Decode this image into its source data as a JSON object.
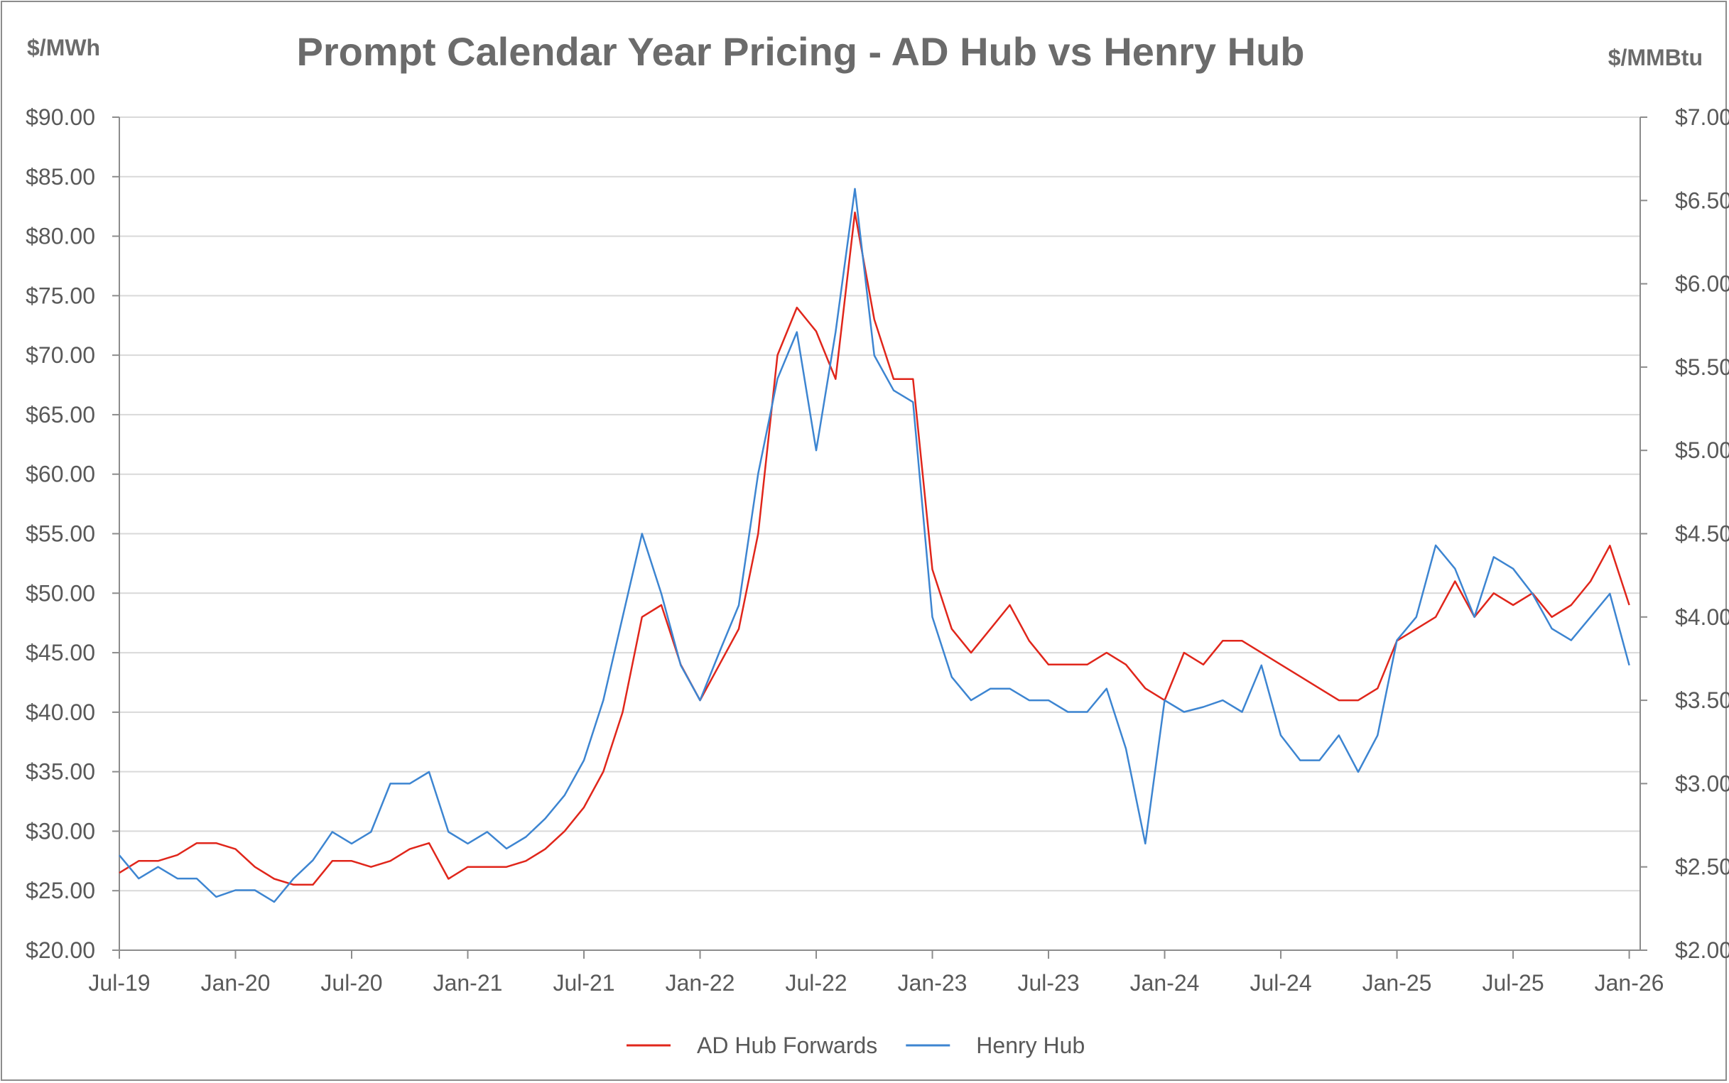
{
  "chart_data": {
    "type": "line",
    "title": "Prompt Calendar Year Pricing - AD Hub vs Henry Hub",
    "ylabel_left": "$/MWh",
    "ylabel_right": "$/MMBtu",
    "ylim_left": [
      20,
      90
    ],
    "ylim_right": [
      2,
      7
    ],
    "yticks_left": [
      "$20.00",
      "$25.00",
      "$30.00",
      "$35.00",
      "$40.00",
      "$45.00",
      "$50.00",
      "$55.00",
      "$60.00",
      "$65.00",
      "$70.00",
      "$75.00",
      "$80.00",
      "$85.00",
      "$90.00"
    ],
    "yticks_right": [
      "$2.00",
      "$2.50",
      "$3.00",
      "$3.50",
      "$4.00",
      "$4.50",
      "$5.00",
      "$5.50",
      "$6.00",
      "$6.50",
      "$7.00"
    ],
    "xticks": [
      "Jul-19",
      "Jan-20",
      "Jul-20",
      "Jan-21",
      "Jul-21",
      "Jan-22",
      "Jul-22",
      "Jan-23",
      "Jul-23",
      "Jan-24",
      "Jul-24",
      "Jan-25",
      "Jul-25",
      "Jan-26"
    ],
    "xlim": [
      "2019-07",
      "2026-01-18"
    ],
    "grid": true,
    "legend": "bottom",
    "x": [
      "2019-07",
      "2019-08",
      "2019-09",
      "2019-10",
      "2019-11",
      "2019-12",
      "2020-01",
      "2020-02",
      "2020-03",
      "2020-04",
      "2020-05",
      "2020-06",
      "2020-07",
      "2020-08",
      "2020-09",
      "2020-10",
      "2020-11",
      "2020-12",
      "2021-01",
      "2021-02",
      "2021-03",
      "2021-04",
      "2021-05",
      "2021-06",
      "2021-07",
      "2021-08",
      "2021-09",
      "2021-10",
      "2021-11",
      "2021-12",
      "2022-01",
      "2022-02",
      "2022-03",
      "2022-04",
      "2022-05",
      "2022-06",
      "2022-07",
      "2022-08",
      "2022-09",
      "2022-10",
      "2022-11",
      "2022-12",
      "2023-01",
      "2023-02",
      "2023-03",
      "2023-04",
      "2023-05",
      "2023-06",
      "2023-07",
      "2023-08",
      "2023-09",
      "2023-10",
      "2023-11",
      "2023-12",
      "2024-01",
      "2024-02",
      "2024-03",
      "2024-04",
      "2024-05",
      "2024-06",
      "2024-07",
      "2024-08",
      "2024-09",
      "2024-10",
      "2024-11",
      "2024-12",
      "2025-01",
      "2025-02",
      "2025-03",
      "2025-04",
      "2025-05",
      "2025-06",
      "2025-07",
      "2025-08",
      "2025-09",
      "2025-10",
      "2025-11",
      "2025-12",
      "2026-01"
    ],
    "series": [
      {
        "name": "AD Hub Forwards",
        "axis": "left",
        "color": "#e0261b",
        "values": [
          26.5,
          27.5,
          27.5,
          28,
          29,
          29,
          28.5,
          27,
          26,
          25.5,
          25.5,
          27.5,
          27.5,
          27,
          27.5,
          28.5,
          29,
          26,
          27,
          27,
          27,
          27.5,
          28.5,
          30,
          32,
          35,
          40,
          48,
          49,
          44,
          41,
          44,
          47,
          55,
          70,
          74,
          72,
          68,
          82,
          73,
          68,
          68,
          52,
          47,
          45,
          47,
          49,
          46,
          44,
          44,
          44,
          45,
          44,
          42,
          41,
          45,
          44,
          46,
          46,
          45,
          44,
          43,
          42,
          41,
          41,
          42,
          46,
          47,
          48,
          51,
          48,
          50,
          49,
          50,
          48,
          49,
          51,
          54,
          49
        ]
      },
      {
        "name": "Henry Hub",
        "axis": "right",
        "color": "#3d85d1",
        "values": [
          2.57,
          2.43,
          2.5,
          2.43,
          2.43,
          2.32,
          2.36,
          2.36,
          2.29,
          2.43,
          2.54,
          2.71,
          2.64,
          2.71,
          3.0,
          3.0,
          3.07,
          2.71,
          2.64,
          2.71,
          2.61,
          2.68,
          2.79,
          2.93,
          3.14,
          3.5,
          4.0,
          4.5,
          4.14,
          3.71,
          3.5,
          3.79,
          4.07,
          4.86,
          5.43,
          5.71,
          5.0,
          5.71,
          6.57,
          5.57,
          5.36,
          5.29,
          4.0,
          3.64,
          3.5,
          3.57,
          3.57,
          3.5,
          3.5,
          3.43,
          3.43,
          3.57,
          3.21,
          2.64,
          3.5,
          3.43,
          3.46,
          3.5,
          3.43,
          3.71,
          3.29,
          3.14,
          3.14,
          3.29,
          3.07,
          3.29,
          3.86,
          4.0,
          4.43,
          4.29,
          4.0,
          4.36,
          4.29,
          4.14,
          3.93,
          3.86,
          4.0,
          4.14,
          3.71
        ]
      }
    ]
  }
}
